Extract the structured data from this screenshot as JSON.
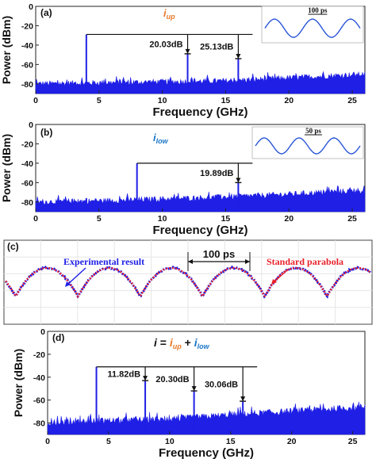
{
  "colors": {
    "signal": "#1f1fe6",
    "parabola": "#e8202a",
    "accent_up": "#e8792a",
    "accent_low": "#1b76c8"
  },
  "chart_data": [
    {
      "type": "line",
      "panel": "(a)",
      "label_main": "i",
      "label_sub": "up",
      "xlabel": "Frequency (GHz)",
      "ylabel": "Power (dBm)",
      "xlim": [
        0,
        26
      ],
      "ylim": [
        -90,
        0
      ],
      "xticks": [
        0,
        5,
        10,
        15,
        20,
        25
      ],
      "yticks": [
        0,
        -20,
        -40,
        -60,
        -80
      ],
      "noise_floor": [
        [
          0,
          -80
        ],
        [
          5,
          -79
        ],
        [
          10,
          -78
        ],
        [
          15,
          -77
        ],
        [
          20,
          -74
        ],
        [
          26,
          -70
        ]
      ],
      "peaks": [
        {
          "x": 4,
          "y": -29
        },
        {
          "x": 12,
          "y": -49
        },
        {
          "x": 16,
          "y": -54
        }
      ],
      "annotations": [
        {
          "text": "20.03dB",
          "ref_peak": 1
        },
        {
          "text": "25.13dB",
          "ref_peak": 2
        }
      ],
      "inset": {
        "label": "100 ps",
        "cycles": 2.5
      }
    },
    {
      "type": "line",
      "panel": "(b)",
      "label_main": "i",
      "label_sub": "low",
      "xlabel": "Frequency (GHz)",
      "ylabel": "Power (dBm)",
      "xlim": [
        0,
        26
      ],
      "ylim": [
        -90,
        0
      ],
      "xticks": [
        0,
        5,
        10,
        15,
        20,
        25
      ],
      "yticks": [
        0,
        -20,
        -40,
        -60,
        -80
      ],
      "noise_floor": [
        [
          0,
          -80
        ],
        [
          5,
          -79
        ],
        [
          10,
          -77
        ],
        [
          15,
          -75
        ],
        [
          20,
          -72
        ],
        [
          26,
          -68
        ]
      ],
      "peaks": [
        {
          "x": 4,
          "y": -76
        },
        {
          "x": 8,
          "y": -40
        },
        {
          "x": 16,
          "y": -60
        }
      ],
      "annotations": [
        {
          "text": "19.89dB",
          "ref_peak": 2
        }
      ],
      "inset": {
        "label": "50 ps",
        "cycles": 3
      }
    },
    {
      "type": "line",
      "panel": "(c)",
      "series": [
        {
          "name": "Experimental  result"
        },
        {
          "name": "Standard parabola"
        }
      ],
      "period_label": "100 ps",
      "peaks_count": 5
    },
    {
      "type": "line",
      "panel": "(d)",
      "label_formula": [
        "i",
        " = ",
        "i",
        "up",
        " + ",
        "i",
        "low"
      ],
      "xlabel": "Frequency (GHz)",
      "ylabel": "Power (dBm)",
      "xlim": [
        0,
        26
      ],
      "ylim": [
        -90,
        0
      ],
      "xticks": [
        0,
        5,
        10,
        15,
        20,
        25
      ],
      "yticks": [
        0,
        -20,
        -40,
        -60,
        -80
      ],
      "noise_floor": [
        [
          0,
          -80
        ],
        [
          5,
          -78
        ],
        [
          10,
          -77
        ],
        [
          15,
          -73
        ],
        [
          20,
          -70
        ],
        [
          26,
          -66
        ]
      ],
      "peaks": [
        {
          "x": 4,
          "y": -31
        },
        {
          "x": 8,
          "y": -43
        },
        {
          "x": 12,
          "y": -52
        },
        {
          "x": 16,
          "y": -61
        }
      ],
      "annotations": [
        {
          "text": "11.82dB",
          "ref_peak": 1
        },
        {
          "text": "20.30dB",
          "ref_peak": 2
        },
        {
          "text": "30.06dB",
          "ref_peak": 3
        }
      ]
    }
  ]
}
